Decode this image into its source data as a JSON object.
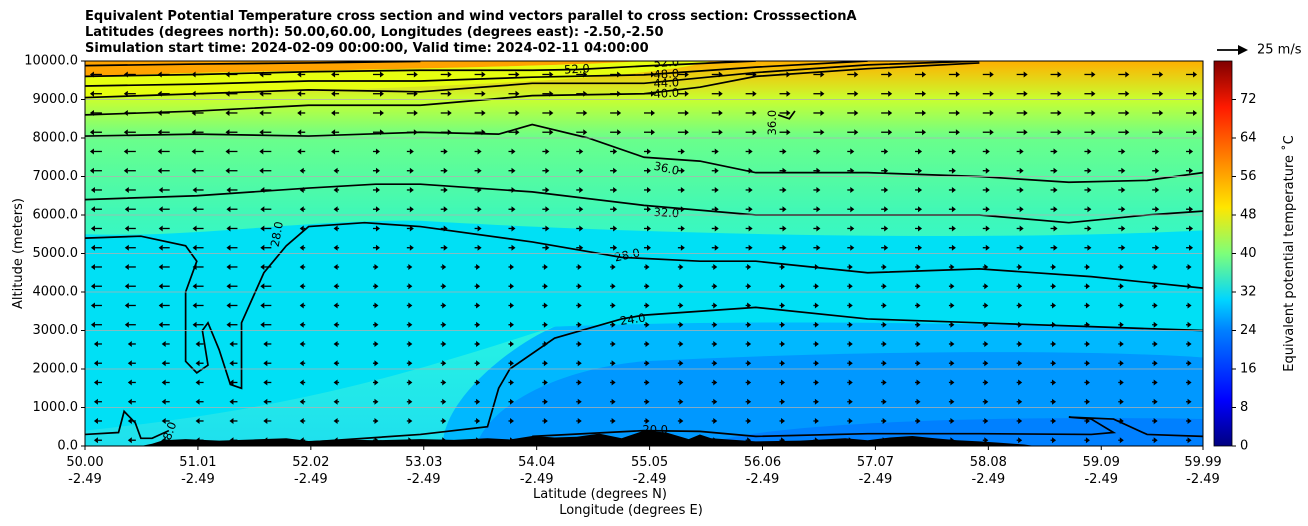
{
  "chart_data": {
    "type": "contour",
    "title_lines": [
      "Equivalent Potential Temperature cross section and wind vectors parallel to cross section: CrosssectionA",
      "Latitudes (degrees north): 50.00,60.00, Longitudes (degrees east): -2.50,-2.50",
      "Simulation start time: 2024-02-09 00:00:00, Valid time: 2024-02-11 04:00:00"
    ],
    "ylabel": "Altitude (meters)",
    "xlabel_1": "Latitude (degrees N)",
    "xlabel_2": "Longitude (degrees E)",
    "ylim": [
      0,
      10000
    ],
    "y_ticks": [
      "0.0",
      "1000.0",
      "2000.0",
      "3000.0",
      "4000.0",
      "5000.0",
      "6000.0",
      "7000.0",
      "8000.0",
      "9000.0",
      "10000.0"
    ],
    "x_ticks_lat": [
      "50.00",
      "51.01",
      "52.02",
      "53.03",
      "54.04",
      "55.05",
      "56.06",
      "57.07",
      "58.08",
      "59.09",
      "59.99"
    ],
    "x_ticks_lon": [
      "-2.49",
      "-2.49",
      "-2.49",
      "-2.49",
      "-2.49",
      "-2.49",
      "-2.49",
      "-2.49",
      "-2.49",
      "-2.49",
      "-2.49"
    ],
    "colorbar": {
      "label": "Equivalent potential temperature ˚C",
      "range": [
        0,
        80
      ],
      "ticks": [
        "0",
        "8",
        "16",
        "24",
        "32",
        "40",
        "48",
        "56",
        "64",
        "72"
      ]
    },
    "quiver_key": "25 m/s",
    "contour_labels": [
      {
        "text": "52.0",
        "x": 0.44,
        "y": 9780,
        "rot": -3
      },
      {
        "text": "52.0",
        "x": 0.52,
        "y": 9950,
        "rot": -3
      },
      {
        "text": "48.0",
        "x": 0.52,
        "y": 9650,
        "rot": -3
      },
      {
        "text": "44.0",
        "x": 0.52,
        "y": 9420,
        "rot": -3
      },
      {
        "text": "40.0",
        "x": 0.52,
        "y": 9150,
        "rot": -3
      },
      {
        "text": "36.0",
        "x": 0.52,
        "y": 7200,
        "rot": 12
      },
      {
        "text": "32.0",
        "x": 0.52,
        "y": 6050,
        "rot": 3
      },
      {
        "text": "28.0",
        "x": 0.485,
        "y": 4950,
        "rot": -12
      },
      {
        "text": "24.0",
        "x": 0.49,
        "y": 3280,
        "rot": -8
      },
      {
        "text": "20.0",
        "x": 0.51,
        "y": 420,
        "rot": 0
      },
      {
        "text": "28.0",
        "x": 0.172,
        "y": 5500,
        "rot": -80
      },
      {
        "text": "28.0",
        "x": 0.075,
        "y": 300,
        "rot": -70
      },
      {
        "text": "36.0",
        "x": 0.615,
        "y": 8400,
        "rot": -90
      }
    ],
    "contour_levels": [
      20,
      24,
      28,
      32,
      36,
      40,
      44,
      48,
      52
    ]
  }
}
